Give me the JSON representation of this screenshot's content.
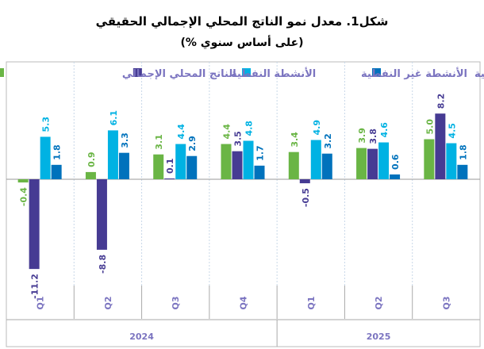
{
  "chart_data": {
    "type": "bar",
    "title": "شكل1.  معدل نمو الناتج المحلي الإجمالي الحقيقي",
    "subtitle": "(على أساس سنوي %)",
    "categories": [
      "Q1",
      "Q2",
      "Q3",
      "Q4",
      "Q1",
      "Q2",
      "Q3"
    ],
    "years": [
      {
        "label": "2024",
        "span": 4
      },
      {
        "label": "2025",
        "span": 3
      }
    ],
    "series": [
      {
        "name": "الناتج المحلي الإجمالي",
        "color": "#6ab545",
        "values": [
          -0.4,
          0.9,
          3.1,
          4.4,
          3.4,
          3.9,
          5.0
        ]
      },
      {
        "name": "الأنشطة النفطية",
        "color": "#463b93",
        "values": [
          -11.2,
          -8.8,
          0.1,
          3.5,
          -0.5,
          3.8,
          8.2
        ]
      },
      {
        "name": "الأنشطة غير النفطية",
        "color": "#00b2e3",
        "values": [
          5.3,
          6.1,
          4.4,
          4.8,
          4.9,
          4.6,
          4.5
        ]
      },
      {
        "name": "الأنشطة الحكومية",
        "color": "#0072bc",
        "values": [
          1.8,
          3.3,
          2.9,
          1.7,
          3.2,
          0.6,
          1.8
        ]
      }
    ],
    "legend_position": "top",
    "grid": false,
    "axis_label_color": "#7b74c0"
  }
}
